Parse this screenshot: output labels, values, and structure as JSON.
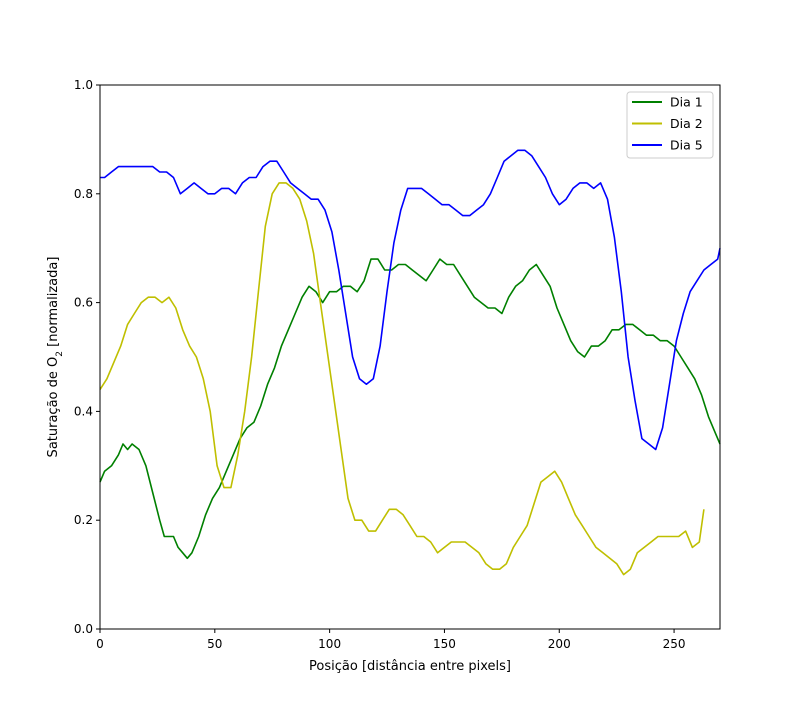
{
  "chart_data": {
    "type": "line",
    "xlabel": "Posição [distância entre pixels]",
    "ylabel_main": "Saturação de O",
    "ylabel_sub": "2",
    "ylabel_tail": " [normalizada]",
    "xlim": [
      0,
      270
    ],
    "ylim": [
      0.0,
      1.0
    ],
    "xticks": [
      0,
      50,
      100,
      150,
      200,
      250
    ],
    "xtick_labels": [
      "0",
      "50",
      "100",
      "150",
      "200",
      "250"
    ],
    "yticks": [
      0.0,
      0.2,
      0.4,
      0.6,
      0.8,
      1.0
    ],
    "ytick_labels": [
      "0.0",
      "0.2",
      "0.4",
      "0.6",
      "0.8",
      "1.0"
    ],
    "grid": false,
    "legend_position": "top-right",
    "series": [
      {
        "name": "Dia 1",
        "color": "#008000",
        "x": [
          0,
          2,
          5,
          8,
          10,
          12,
          14,
          17,
          20,
          23,
          26,
          28,
          30,
          32,
          34,
          36,
          38,
          40,
          43,
          46,
          49,
          52,
          55,
          58,
          61,
          64,
          67,
          70,
          73,
          76,
          79,
          82,
          85,
          88,
          91,
          94,
          97,
          100,
          103,
          106,
          109,
          112,
          115,
          118,
          121,
          124,
          127,
          130,
          133,
          136,
          139,
          142,
          145,
          148,
          151,
          154,
          157,
          160,
          163,
          166,
          169,
          172,
          175,
          178,
          181,
          184,
          187,
          190,
          193,
          196,
          199,
          202,
          205,
          208,
          211,
          214,
          217,
          220,
          223,
          226,
          229,
          232,
          235,
          238,
          241,
          244,
          247,
          250,
          253,
          256,
          259,
          262,
          265,
          268,
          270
        ],
        "values": [
          0.27,
          0.29,
          0.3,
          0.32,
          0.34,
          0.33,
          0.34,
          0.33,
          0.3,
          0.25,
          0.2,
          0.17,
          0.17,
          0.17,
          0.15,
          0.14,
          0.13,
          0.14,
          0.17,
          0.21,
          0.24,
          0.26,
          0.29,
          0.32,
          0.35,
          0.37,
          0.38,
          0.41,
          0.45,
          0.48,
          0.52,
          0.55,
          0.58,
          0.61,
          0.63,
          0.62,
          0.6,
          0.62,
          0.62,
          0.63,
          0.63,
          0.62,
          0.64,
          0.68,
          0.68,
          0.66,
          0.66,
          0.67,
          0.67,
          0.66,
          0.65,
          0.64,
          0.66,
          0.68,
          0.67,
          0.67,
          0.65,
          0.63,
          0.61,
          0.6,
          0.59,
          0.59,
          0.58,
          0.61,
          0.63,
          0.64,
          0.66,
          0.67,
          0.65,
          0.63,
          0.59,
          0.56,
          0.53,
          0.51,
          0.5,
          0.52,
          0.52,
          0.53,
          0.55,
          0.55,
          0.56,
          0.56,
          0.55,
          0.54,
          0.54,
          0.53,
          0.53,
          0.52,
          0.5,
          0.48,
          0.46,
          0.43,
          0.39,
          0.36,
          0.34
        ]
      },
      {
        "name": "Dia 2",
        "color": "#bfbf00",
        "x": [
          0,
          3,
          6,
          9,
          12,
          15,
          18,
          21,
          24,
          27,
          30,
          33,
          36,
          39,
          42,
          45,
          48,
          51,
          54,
          57,
          60,
          63,
          66,
          69,
          72,
          75,
          78,
          81,
          84,
          87,
          90,
          93,
          96,
          99,
          102,
          105,
          108,
          111,
          114,
          117,
          120,
          123,
          126,
          129,
          132,
          135,
          138,
          141,
          144,
          147,
          150,
          153,
          156,
          159,
          162,
          165,
          168,
          171,
          174,
          177,
          180,
          183,
          186,
          189,
          192,
          195,
          198,
          201,
          204,
          207,
          210,
          213,
          216,
          219,
          222,
          225,
          228,
          231,
          234,
          237,
          240,
          243,
          246,
          249,
          252,
          255,
          258,
          261,
          263
        ],
        "values": [
          0.44,
          0.46,
          0.49,
          0.52,
          0.56,
          0.58,
          0.6,
          0.61,
          0.61,
          0.6,
          0.61,
          0.59,
          0.55,
          0.52,
          0.5,
          0.46,
          0.4,
          0.3,
          0.26,
          0.26,
          0.32,
          0.4,
          0.5,
          0.62,
          0.74,
          0.8,
          0.82,
          0.82,
          0.81,
          0.79,
          0.75,
          0.69,
          0.6,
          0.51,
          0.42,
          0.33,
          0.24,
          0.2,
          0.2,
          0.18,
          0.18,
          0.2,
          0.22,
          0.22,
          0.21,
          0.19,
          0.17,
          0.17,
          0.16,
          0.14,
          0.15,
          0.16,
          0.16,
          0.16,
          0.15,
          0.14,
          0.12,
          0.11,
          0.11,
          0.12,
          0.15,
          0.17,
          0.19,
          0.23,
          0.27,
          0.28,
          0.29,
          0.27,
          0.24,
          0.21,
          0.19,
          0.17,
          0.15,
          0.14,
          0.13,
          0.12,
          0.1,
          0.11,
          0.14,
          0.15,
          0.16,
          0.17,
          0.17,
          0.17,
          0.17,
          0.18,
          0.15,
          0.16,
          0.22
        ]
      },
      {
        "name": "Dia 5",
        "color": "#0000ff",
        "x": [
          0,
          2,
          5,
          8,
          11,
          14,
          17,
          20,
          23,
          26,
          29,
          32,
          35,
          38,
          41,
          44,
          47,
          50,
          53,
          56,
          59,
          62,
          65,
          68,
          71,
          74,
          77,
          80,
          83,
          86,
          89,
          92,
          95,
          98,
          101,
          104,
          107,
          110,
          113,
          116,
          119,
          122,
          125,
          128,
          131,
          134,
          137,
          140,
          143,
          146,
          149,
          152,
          155,
          158,
          161,
          164,
          167,
          170,
          173,
          176,
          179,
          182,
          185,
          188,
          191,
          194,
          197,
          200,
          203,
          206,
          209,
          212,
          215,
          218,
          221,
          224,
          227,
          230,
          233,
          236,
          239,
          242,
          245,
          248,
          251,
          254,
          257,
          260,
          263,
          266,
          269,
          270
        ],
        "values": [
          0.83,
          0.83,
          0.84,
          0.85,
          0.85,
          0.85,
          0.85,
          0.85,
          0.85,
          0.84,
          0.84,
          0.83,
          0.8,
          0.81,
          0.82,
          0.81,
          0.8,
          0.8,
          0.81,
          0.81,
          0.8,
          0.82,
          0.83,
          0.83,
          0.85,
          0.86,
          0.86,
          0.84,
          0.82,
          0.81,
          0.8,
          0.79,
          0.79,
          0.77,
          0.73,
          0.66,
          0.58,
          0.5,
          0.46,
          0.45,
          0.46,
          0.52,
          0.62,
          0.71,
          0.77,
          0.81,
          0.81,
          0.81,
          0.8,
          0.79,
          0.78,
          0.78,
          0.77,
          0.76,
          0.76,
          0.77,
          0.78,
          0.8,
          0.83,
          0.86,
          0.87,
          0.88,
          0.88,
          0.87,
          0.85,
          0.83,
          0.8,
          0.78,
          0.79,
          0.81,
          0.82,
          0.82,
          0.81,
          0.82,
          0.79,
          0.72,
          0.62,
          0.5,
          0.42,
          0.35,
          0.34,
          0.33,
          0.37,
          0.45,
          0.53,
          0.58,
          0.62,
          0.64,
          0.66,
          0.67,
          0.68,
          0.7
        ]
      }
    ]
  }
}
